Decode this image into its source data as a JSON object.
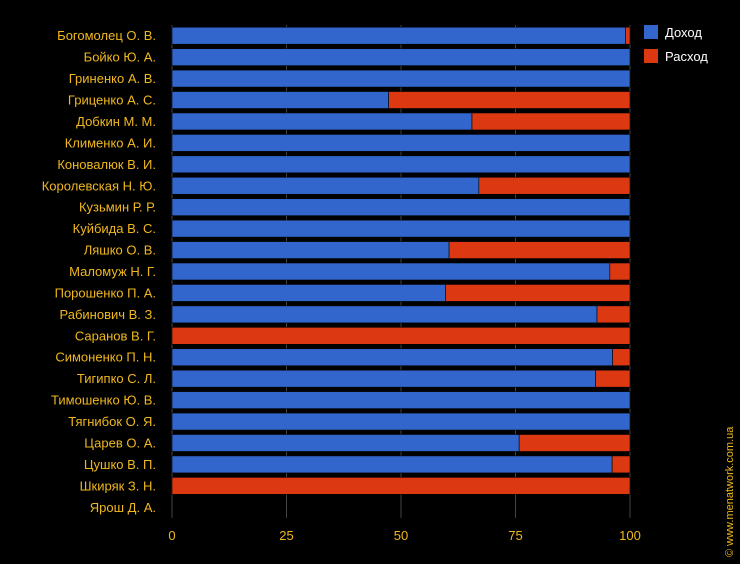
{
  "chart_data": {
    "type": "bar",
    "orientation": "horizontal",
    "stacked": true,
    "percent": true,
    "categories": [
      "Богомолец О. В.",
      "Бойко Ю. А.",
      "Гриненко А. В.",
      "Гриценко А. С.",
      "Добкин М. М.",
      "Клименко А. И.",
      "Коновалюк В. И.",
      "Королевская Н. Ю.",
      "Кузьмин Р. Р.",
      "Куйбида В. С.",
      "Ляшко О. В.",
      "Маломуж Н. Г.",
      "Порошенко П. А.",
      "Рабинович В. З.",
      "Саранов В. Г.",
      "Симоненко П. Н.",
      "Тигипко С. Л.",
      "Тимошенко Ю. В.",
      "Тягнибок О. Я.",
      "Царев О. А.",
      "Цушко В. П.",
      "Шкиряк З. Н.",
      "Ярош Д. А."
    ],
    "series": [
      {
        "name": "Доход",
        "color": "#3366cc",
        "values": [
          99,
          100,
          100,
          47.3,
          65.5,
          100,
          100,
          67,
          100,
          100,
          60.5,
          95.6,
          59.7,
          92.8,
          0,
          96.2,
          92.5,
          100,
          100,
          75.8,
          96.1,
          0,
          0
        ]
      },
      {
        "name": "Расход",
        "color": "#dc3912",
        "values": [
          1,
          0,
          0,
          52.7,
          34.5,
          0,
          0,
          33,
          0,
          0,
          39.5,
          4.4,
          40.3,
          7.2,
          100,
          3.8,
          7.5,
          0,
          0,
          24.2,
          3.9,
          100,
          0
        ]
      }
    ],
    "xlim": [
      0,
      100
    ],
    "xticks": [
      "0",
      "25",
      "50",
      "75",
      "100"
    ],
    "grid": true,
    "legend_position": "right"
  },
  "credit": "© www.menatwork.com.ua",
  "colors": {
    "background": "#000000",
    "text": "#f0b81e",
    "grid": "#444444",
    "legend_text": "#ffffff"
  }
}
